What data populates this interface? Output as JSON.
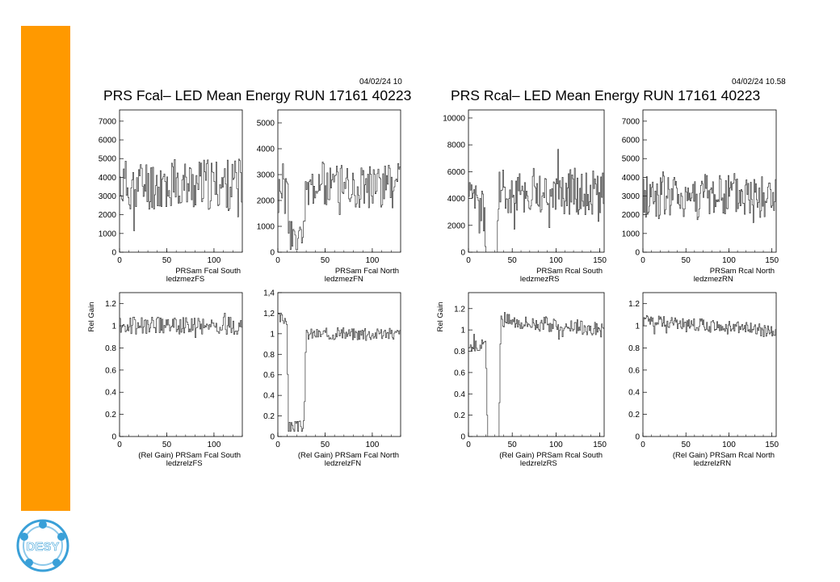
{
  "brand": {
    "accent_color": "#ff9900",
    "logo_text": "DESY",
    "logo_color": "#3aa0d8"
  },
  "panels_header": [
    {
      "date": "04/02/24  10",
      "title": "PRS Fcal– LED Mean Energy RUN 17161   40223"
    },
    {
      "date": "04/02/24  10.58",
      "title": "PRS Rcal– LED Mean Energy RUN 17161   40223"
    }
  ],
  "chart_data": [
    {
      "type": "line",
      "title": "PRSam Fcal South",
      "id": "ledzmezFS",
      "xlim": [
        0,
        130
      ],
      "ylim": [
        0,
        7600
      ],
      "xticks": [
        0,
        50,
        100
      ],
      "yticks": [
        0,
        1000,
        2000,
        3000,
        4000,
        5000,
        6000,
        7000
      ],
      "ytick_labels": [
        "0",
        "1000",
        "2000",
        "3000",
        "4000",
        "5000",
        "6000",
        "7000"
      ],
      "y_axis_label": "",
      "seed": 11,
      "profile": [
        [
          0,
          3600
        ],
        [
          130,
          3600
        ]
      ],
      "noise": 1400,
      "clip": [
        100,
        7000
      ]
    },
    {
      "type": "line",
      "title": "PRSam Fcal North",
      "id": "ledzmezFN",
      "xlim": [
        0,
        130
      ],
      "ylim": [
        0,
        5500
      ],
      "xticks": [
        0,
        50,
        100
      ],
      "yticks": [
        0,
        1000,
        2000,
        3000,
        4000,
        5000
      ],
      "ytick_labels": [
        "0",
        "1000",
        "2000",
        "3000",
        "4000",
        "5000"
      ],
      "y_axis_label": "",
      "seed": 23,
      "profile": [
        [
          0,
          2200
        ],
        [
          10,
          2200
        ],
        [
          12,
          600
        ],
        [
          28,
          500
        ],
        [
          30,
          2600
        ],
        [
          130,
          2600
        ]
      ],
      "noise": 900,
      "clip": [
        100,
        5000
      ]
    },
    {
      "type": "line",
      "title": "PRSam Rcal South",
      "id": "ledzmezRS",
      "xlim": [
        0,
        155
      ],
      "ylim": [
        0,
        10600
      ],
      "xticks": [
        0,
        50,
        100,
        150
      ],
      "yticks": [
        0,
        2000,
        4000,
        6000,
        8000,
        10000
      ],
      "ytick_labels": [
        "0",
        "2000",
        "4000",
        "6000",
        "8000",
        "10000"
      ],
      "y_axis_label": "",
      "seed": 37,
      "profile": [
        [
          0,
          3500
        ],
        [
          18,
          3000
        ],
        [
          20,
          0
        ],
        [
          33,
          0
        ],
        [
          35,
          4500
        ],
        [
          155,
          4500
        ]
      ],
      "noise": 1800,
      "clip": [
        0,
        9600
      ]
    },
    {
      "type": "line",
      "title": "PRSam Rcal North",
      "id": "ledzmezRN",
      "xlim": [
        0,
        155
      ],
      "ylim": [
        0,
        7600
      ],
      "xticks": [
        0,
        50,
        100,
        150
      ],
      "yticks": [
        0,
        1000,
        2000,
        3000,
        4000,
        5000,
        6000,
        7000
      ],
      "ytick_labels": [
        "0",
        "1000",
        "2000",
        "3000",
        "4000",
        "5000",
        "6000",
        "7000"
      ],
      "y_axis_label": "",
      "seed": 41,
      "profile": [
        [
          0,
          3000
        ],
        [
          155,
          3000
        ]
      ],
      "noise": 1300,
      "clip": [
        0,
        6900
      ]
    },
    {
      "type": "line",
      "title": "(Rel Gain) PRSam Fcal South",
      "id": "ledzrelzFS",
      "xlim": [
        0,
        130
      ],
      "ylim": [
        0,
        1.3
      ],
      "xticks": [
        0,
        50,
        100
      ],
      "yticks": [
        0,
        0.2,
        0.4,
        0.6,
        0.8,
        1,
        1.2
      ],
      "ytick_labels": [
        "0",
        "0.2",
        "0.4",
        "0.6",
        "0.8",
        "1",
        "1.2"
      ],
      "y_axis_label": "Rel Gain",
      "seed": 53,
      "profile": [
        [
          0,
          1.0
        ],
        [
          130,
          1.0
        ]
      ],
      "noise": 0.08,
      "clip": [
        0.75,
        1.18
      ]
    },
    {
      "type": "line",
      "title": "(Rel Gain) PRSam Fcal North",
      "id": "ledzrelzFN",
      "xlim": [
        0,
        130
      ],
      "ylim": [
        0,
        1.4
      ],
      "xticks": [
        0,
        50,
        100
      ],
      "yticks": [
        0,
        0.2,
        0.4,
        0.6,
        0.8,
        1,
        1.2,
        1.4
      ],
      "ytick_labels": [
        "0",
        "0.2",
        "0.4",
        "0.6",
        "0.8",
        "1",
        "1,2",
        "1,4"
      ],
      "y_axis_label": "",
      "seed": 67,
      "profile": [
        [
          0,
          1.15
        ],
        [
          10,
          1.15
        ],
        [
          11,
          0.09
        ],
        [
          28,
          0.1
        ],
        [
          30,
          1.0
        ],
        [
          130,
          1.0
        ]
      ],
      "noise": 0.06,
      "clip": [
        0.05,
        1.27
      ]
    },
    {
      "type": "line",
      "title": "(Rel Gain) PRSam Rcal South",
      "id": "ledzrelzRS",
      "xlim": [
        0,
        155
      ],
      "ylim": [
        0,
        1.35
      ],
      "xticks": [
        0,
        50,
        100,
        150
      ],
      "yticks": [
        0,
        0.2,
        0.4,
        0.6,
        0.8,
        1,
        1.2
      ],
      "ytick_labels": [
        "0",
        "0.2",
        "0.4",
        "0.6",
        "0.8",
        "1",
        "1.2"
      ],
      "y_axis_label": "Rel Gain",
      "seed": 79,
      "profile": [
        [
          0,
          0.85
        ],
        [
          20,
          0.85
        ],
        [
          22,
          0
        ],
        [
          35,
          0
        ],
        [
          37,
          1.1
        ],
        [
          155,
          1.0
        ]
      ],
      "noise": 0.07,
      "clip": [
        0,
        1.25
      ]
    },
    {
      "type": "line",
      "title": "(Rel Gain) PRSam Rcal North",
      "id": "ledzrelzRN",
      "xlim": [
        0,
        155
      ],
      "ylim": [
        0,
        1.3
      ],
      "xticks": [
        0,
        50,
        100,
        150
      ],
      "yticks": [
        0,
        0.2,
        0.4,
        0.6,
        0.8,
        1,
        1.2
      ],
      "ytick_labels": [
        "0",
        "0.2",
        "0.4",
        "0.6",
        "0.8",
        "1",
        "1.2"
      ],
      "y_axis_label": "",
      "seed": 97,
      "profile": [
        [
          0,
          1.05
        ],
        [
          155,
          0.95
        ]
      ],
      "noise": 0.06,
      "clip": [
        0.8,
        1.18
      ]
    }
  ]
}
